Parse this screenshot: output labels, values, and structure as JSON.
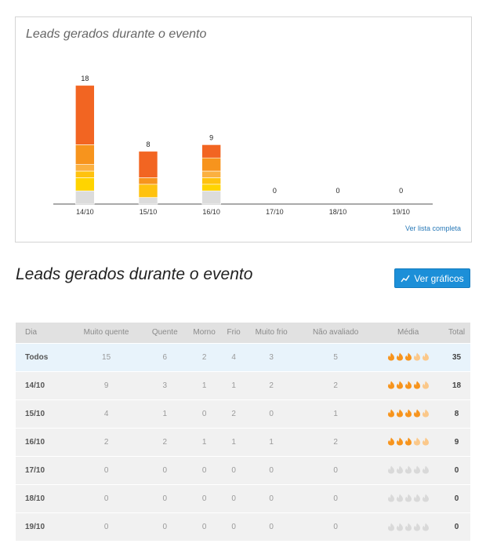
{
  "chart": {
    "title": "Leads gerados durante o evento",
    "link": "Ver lista completa"
  },
  "chart_data": {
    "type": "bar",
    "stacked": true,
    "categories": [
      "14/10",
      "15/10",
      "16/10",
      "17/10",
      "18/10",
      "19/10"
    ],
    "totals": [
      18,
      8,
      9,
      0,
      0,
      0
    ],
    "series": [
      {
        "name": "Muito quente",
        "color": "#f26522",
        "values": [
          9,
          4,
          2,
          0,
          0,
          0
        ]
      },
      {
        "name": "Quente",
        "color": "#f7941d",
        "values": [
          3,
          1,
          2,
          0,
          0,
          0
        ]
      },
      {
        "name": "Morno",
        "color": "#fbb040",
        "values": [
          1,
          0,
          1,
          0,
          0,
          0
        ]
      },
      {
        "name": "Frio",
        "color": "#ffc20e",
        "values": [
          1,
          2,
          1,
          0,
          0,
          0
        ]
      },
      {
        "name": "Muito frio",
        "color": "#ffd400",
        "values": [
          2,
          0,
          1,
          0,
          0,
          0
        ]
      },
      {
        "name": "Não avaliado",
        "color": "#dcdcdc",
        "values": [
          2,
          1,
          2,
          0,
          0,
          0
        ]
      }
    ],
    "ylim": [
      0,
      18
    ],
    "grid": false
  },
  "section": {
    "title": "Leads gerados durante o evento",
    "charts_button": "Ver gráficos"
  },
  "table": {
    "columns": [
      "Dia",
      "Muito quente",
      "Quente",
      "Morno",
      "Frio",
      "Muito frio",
      "Não avaliado",
      "Média",
      "Total"
    ],
    "rows": [
      {
        "day": "Todos",
        "values": [
          "15",
          "6",
          "2",
          "4",
          "3",
          "5"
        ],
        "rating": 3,
        "total": "35",
        "highlight": true
      },
      {
        "day": "14/10",
        "values": [
          "9",
          "3",
          "1",
          "1",
          "2",
          "2"
        ],
        "rating": 4,
        "total": "18"
      },
      {
        "day": "15/10",
        "values": [
          "4",
          "1",
          "0",
          "2",
          "0",
          "1"
        ],
        "rating": 4,
        "total": "8"
      },
      {
        "day": "16/10",
        "values": [
          "2",
          "2",
          "1",
          "1",
          "1",
          "2"
        ],
        "rating": 3,
        "total": "9"
      },
      {
        "day": "17/10",
        "values": [
          "0",
          "0",
          "0",
          "0",
          "0",
          "0"
        ],
        "rating": 0,
        "total": "0"
      },
      {
        "day": "18/10",
        "values": [
          "0",
          "0",
          "0",
          "0",
          "0",
          "0"
        ],
        "rating": 0,
        "total": "0"
      },
      {
        "day": "19/10",
        "values": [
          "0",
          "0",
          "0",
          "0",
          "0",
          "0"
        ],
        "rating": 0,
        "total": "0"
      }
    ],
    "rating_max": 5,
    "colors": {
      "flame_on": "#f7941d",
      "flame_half": "#fbc88a",
      "flame_off": "#d9d9d9"
    }
  }
}
